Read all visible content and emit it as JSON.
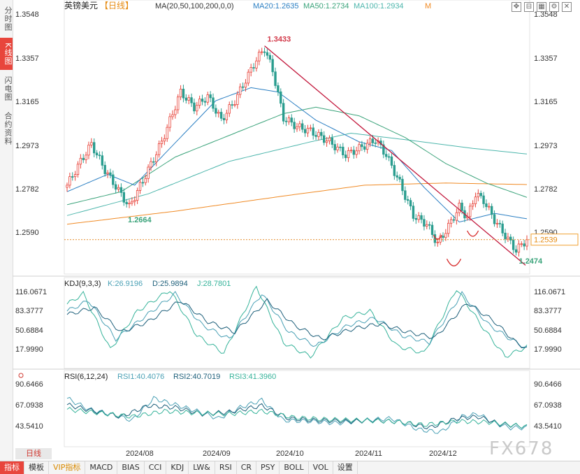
{
  "left_tabs": [
    {
      "label": "分时图",
      "active": false
    },
    {
      "label": "K线图",
      "active": true
    },
    {
      "label": "闪电图",
      "active": false
    },
    {
      "label": "合约资料",
      "active": false
    }
  ],
  "header": {
    "symbol": "英镑美元",
    "period": "【日线】",
    "ma_label": "MA(20,50,100,200,0,0)",
    "ma20": "MA20:1.2635",
    "ma50": "MA50:1.2734",
    "ma100": "MA100:1.2934",
    "ma_extra": "M"
  },
  "kdj": {
    "label": "KDJ(9,3,3)",
    "k": "K:26.9196",
    "d": "D:25.9894",
    "j": "J:28.7801"
  },
  "rsi": {
    "label": "RSI(6,12,24)",
    "rsi1": "RSI1:40.4076",
    "rsi2": "RSI2:40.7019",
    "rsi3": "RSI3:41.3960"
  },
  "period_tab": "日线",
  "bottom_tabs": [
    {
      "label": "指标",
      "active": true
    },
    {
      "label": "模板"
    },
    {
      "label": "VIP指标",
      "vip": true
    },
    {
      "label": "MACD"
    },
    {
      "label": "BIAS"
    },
    {
      "label": "CCI"
    },
    {
      "label": "KDJ"
    },
    {
      "label": "LW&"
    },
    {
      "label": "RSI"
    },
    {
      "label": "CR"
    },
    {
      "label": "PSY"
    },
    {
      "label": "BOLL"
    },
    {
      "label": "VOL"
    },
    {
      "label": "设置"
    }
  ],
  "toolbar_icons": [
    "expand-icon",
    "collapse-icon",
    "grid-icon",
    "settings-icon",
    "close-icon"
  ],
  "watermark": "FX678",
  "colors": {
    "up": "#e8453c",
    "down": "#2a9d8f",
    "ma20": "#2b7fc3",
    "ma50": "#3aa37a",
    "ma100": "#4db6ac",
    "ma200": "#f08a24",
    "trend": "#c2183c",
    "kdj_k": "#4aa0b5",
    "kdj_d": "#1d5f7a",
    "kdj_j": "#36b39a"
  },
  "chart_data": {
    "type": "candlestick",
    "price_axis": {
      "ticks": [
        "1.3548",
        "1.3357",
        "1.3165",
        "1.2973",
        "1.2782",
        "1.2590"
      ],
      "ylim": [
        1.238,
        1.358
      ]
    },
    "last_price": "1.2539",
    "x_ticks": [
      "2024/08",
      "2024/09",
      "2024/10",
      "2024/11",
      "2024/12"
    ],
    "annotations": {
      "high": "1.3433",
      "low_aug": "1.2664",
      "low_dec": "1.2474"
    },
    "key_points": [
      {
        "i": 0,
        "c": 1.279
      },
      {
        "i": 5,
        "c": 1.29
      },
      {
        "i": 9,
        "c": 1.298
      },
      {
        "i": 14,
        "c": 1.286
      },
      {
        "i": 23,
        "c": 1.269
      },
      {
        "i": 28,
        "c": 1.281
      },
      {
        "i": 35,
        "c": 1.299
      },
      {
        "i": 42,
        "c": 1.322
      },
      {
        "i": 47,
        "c": 1.315
      },
      {
        "i": 52,
        "c": 1.32
      },
      {
        "i": 57,
        "c": 1.309
      },
      {
        "i": 62,
        "c": 1.318
      },
      {
        "i": 70,
        "c": 1.337
      },
      {
        "i": 73,
        "c": 1.342
      },
      {
        "i": 76,
        "c": 1.332
      },
      {
        "i": 80,
        "c": 1.31
      },
      {
        "i": 85,
        "c": 1.306
      },
      {
        "i": 90,
        "c": 1.304
      },
      {
        "i": 97,
        "c": 1.299
      },
      {
        "i": 103,
        "c": 1.293
      },
      {
        "i": 108,
        "c": 1.296
      },
      {
        "i": 114,
        "c": 1.3
      },
      {
        "i": 118,
        "c": 1.293
      },
      {
        "i": 123,
        "c": 1.28
      },
      {
        "i": 128,
        "c": 1.265
      },
      {
        "i": 133,
        "c": 1.261
      },
      {
        "i": 137,
        "c": 1.252
      },
      {
        "i": 141,
        "c": 1.26
      },
      {
        "i": 145,
        "c": 1.269
      },
      {
        "i": 148,
        "c": 1.264
      },
      {
        "i": 151,
        "c": 1.275
      },
      {
        "i": 154,
        "c": 1.272
      },
      {
        "i": 158,
        "c": 1.263
      },
      {
        "i": 163,
        "c": 1.254
      },
      {
        "i": 166,
        "c": 1.249
      },
      {
        "i": 170,
        "c": 1.2539
      }
    ],
    "ma20": [
      [
        0,
        1.276
      ],
      [
        15,
        1.284
      ],
      [
        25,
        1.279
      ],
      [
        38,
        1.296
      ],
      [
        55,
        1.318
      ],
      [
        68,
        1.324
      ],
      [
        78,
        1.322
      ],
      [
        92,
        1.309
      ],
      [
        108,
        1.299
      ],
      [
        120,
        1.295
      ],
      [
        132,
        1.278
      ],
      [
        145,
        1.262
      ],
      [
        158,
        1.266
      ],
      [
        170,
        1.2635
      ]
    ],
    "ma50": [
      [
        0,
        1.27
      ],
      [
        20,
        1.276
      ],
      [
        40,
        1.292
      ],
      [
        60,
        1.302
      ],
      [
        80,
        1.312
      ],
      [
        92,
        1.315
      ],
      [
        108,
        1.311
      ],
      [
        125,
        1.301
      ],
      [
        140,
        1.289
      ],
      [
        155,
        1.28
      ],
      [
        170,
        1.2734
      ]
    ],
    "ma100": [
      [
        0,
        1.265
      ],
      [
        30,
        1.275
      ],
      [
        60,
        1.29
      ],
      [
        90,
        1.299
      ],
      [
        105,
        1.303
      ],
      [
        125,
        1.3
      ],
      [
        150,
        1.296
      ],
      [
        170,
        1.2934
      ]
    ],
    "ma200": [
      [
        0,
        1.261
      ],
      [
        40,
        1.267
      ],
      [
        80,
        1.274
      ],
      [
        110,
        1.279
      ],
      [
        140,
        1.28
      ],
      [
        170,
        1.2793
      ]
    ],
    "trendline": [
      [
        73,
        1.3433
      ],
      [
        170,
        1.244
      ]
    ],
    "kdj_axis": {
      "ticks": [
        "116.0671",
        "83.3777",
        "50.6884",
        "17.9990"
      ]
    },
    "kdj_k": [
      [
        0,
        80
      ],
      [
        8,
        95
      ],
      [
        18,
        40
      ],
      [
        28,
        70
      ],
      [
        40,
        105
      ],
      [
        50,
        60
      ],
      [
        60,
        40
      ],
      [
        72,
        105
      ],
      [
        82,
        50
      ],
      [
        92,
        30
      ],
      [
        104,
        60
      ],
      [
        114,
        70
      ],
      [
        124,
        45
      ],
      [
        134,
        35
      ],
      [
        146,
        105
      ],
      [
        156,
        60
      ],
      [
        164,
        40
      ],
      [
        170,
        27
      ]
    ],
    "kdj_d": [
      [
        0,
        75
      ],
      [
        10,
        85
      ],
      [
        20,
        50
      ],
      [
        30,
        65
      ],
      [
        42,
        95
      ],
      [
        52,
        65
      ],
      [
        62,
        50
      ],
      [
        74,
        95
      ],
      [
        84,
        60
      ],
      [
        94,
        40
      ],
      [
        106,
        55
      ],
      [
        116,
        62
      ],
      [
        126,
        50
      ],
      [
        136,
        42
      ],
      [
        148,
        92
      ],
      [
        158,
        65
      ],
      [
        166,
        35
      ],
      [
        170,
        26
      ]
    ],
    "kdj_j": [
      [
        0,
        90
      ],
      [
        6,
        105
      ],
      [
        16,
        25
      ],
      [
        26,
        80
      ],
      [
        38,
        110
      ],
      [
        48,
        45
      ],
      [
        58,
        20
      ],
      [
        70,
        115
      ],
      [
        80,
        35
      ],
      [
        90,
        15
      ],
      [
        102,
        70
      ],
      [
        112,
        80
      ],
      [
        122,
        30
      ],
      [
        132,
        20
      ],
      [
        144,
        112
      ],
      [
        154,
        55
      ],
      [
        162,
        15
      ],
      [
        170,
        29
      ]
    ],
    "rsi_axis": {
      "ticks": [
        "90.6466",
        "67.0938",
        "43.5410"
      ]
    },
    "rsi1": [
      [
        0,
        72
      ],
      [
        8,
        60
      ],
      [
        16,
        55
      ],
      [
        24,
        48
      ],
      [
        32,
        72
      ],
      [
        40,
        65
      ],
      [
        48,
        58
      ],
      [
        56,
        50
      ],
      [
        64,
        62
      ],
      [
        72,
        70
      ],
      [
        80,
        48
      ],
      [
        90,
        47
      ],
      [
        100,
        45
      ],
      [
        110,
        48
      ],
      [
        120,
        50
      ],
      [
        130,
        38
      ],
      [
        138,
        35
      ],
      [
        146,
        52
      ],
      [
        152,
        55
      ],
      [
        158,
        45
      ],
      [
        164,
        40
      ],
      [
        170,
        40
      ]
    ],
    "rsi2": [
      [
        0,
        65
      ],
      [
        10,
        58
      ],
      [
        20,
        52
      ],
      [
        30,
        64
      ],
      [
        40,
        62
      ],
      [
        50,
        55
      ],
      [
        60,
        57
      ],
      [
        72,
        64
      ],
      [
        82,
        50
      ],
      [
        92,
        48
      ],
      [
        104,
        47
      ],
      [
        114,
        48
      ],
      [
        124,
        46
      ],
      [
        134,
        40
      ],
      [
        144,
        50
      ],
      [
        152,
        52
      ],
      [
        160,
        44
      ],
      [
        170,
        41
      ]
    ],
    "rsi3": [
      [
        0,
        60
      ],
      [
        12,
        56
      ],
      [
        24,
        52
      ],
      [
        36,
        58
      ],
      [
        48,
        56
      ],
      [
        60,
        55
      ],
      [
        72,
        58
      ],
      [
        84,
        51
      ],
      [
        96,
        49
      ],
      [
        108,
        48
      ],
      [
        120,
        47
      ],
      [
        132,
        43
      ],
      [
        144,
        47
      ],
      [
        156,
        46
      ],
      [
        170,
        41
      ]
    ]
  }
}
